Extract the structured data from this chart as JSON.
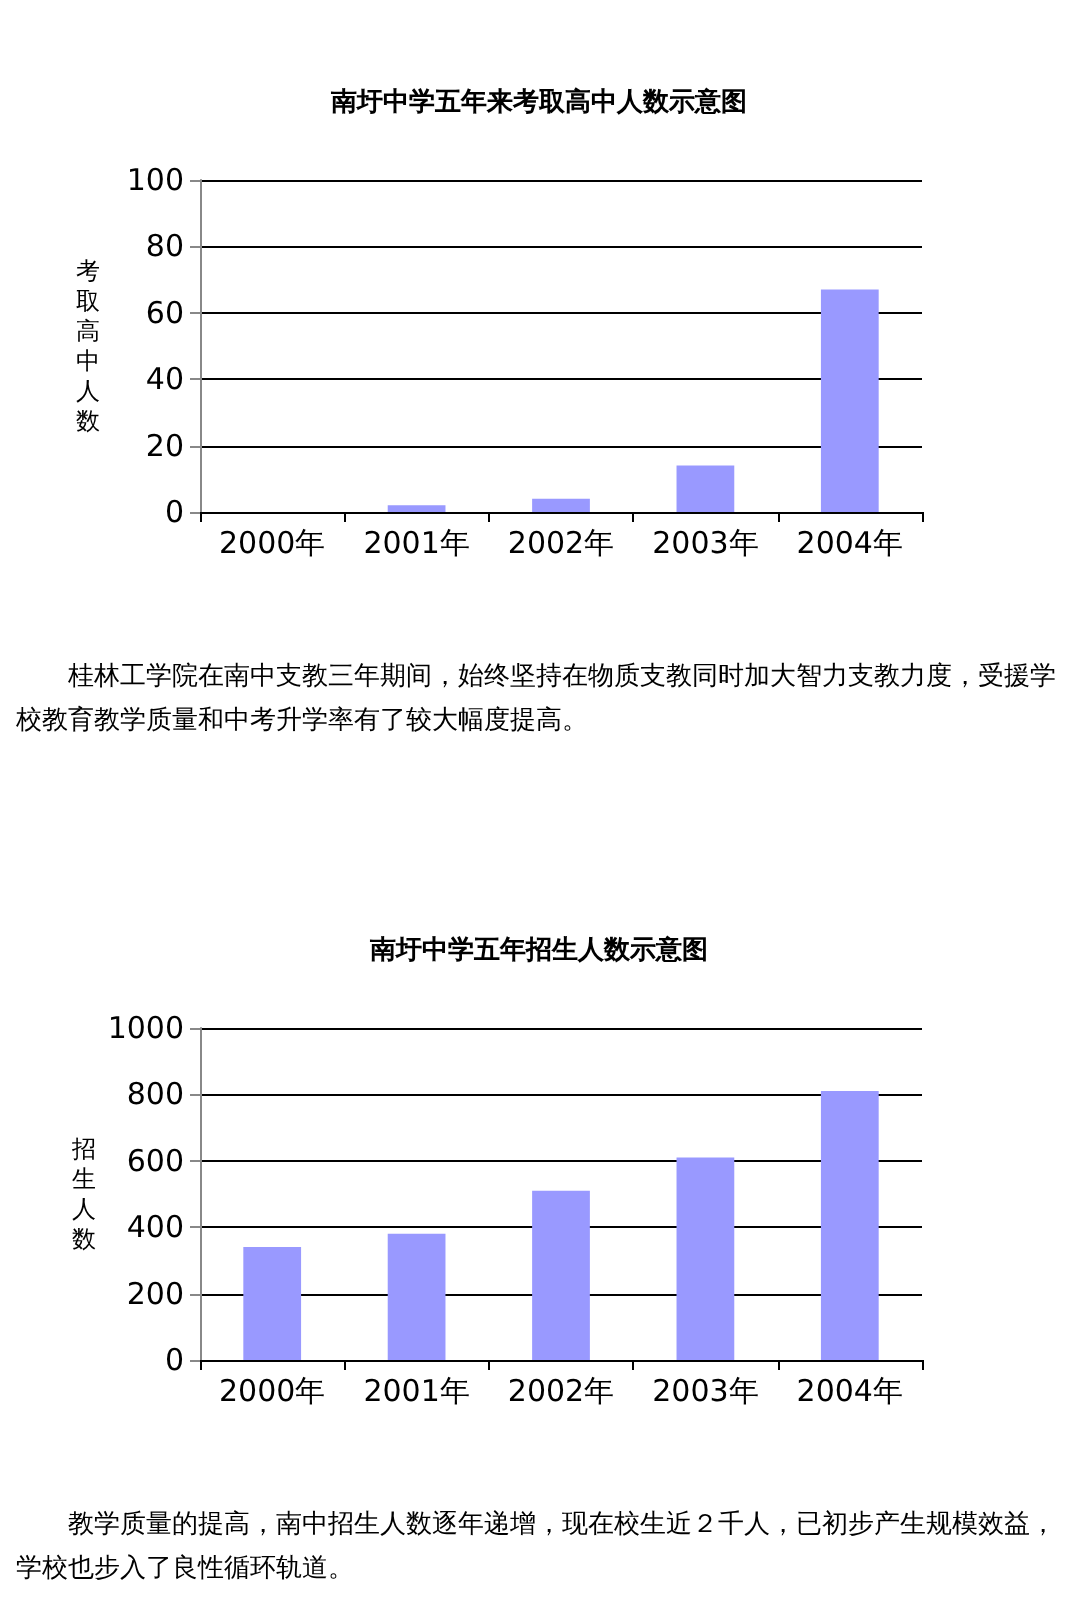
{
  "chart_data": [
    {
      "type": "bar",
      "title": "南圩中学五年来考取高中人数示意图",
      "ylabel": "考取高中人数",
      "categories": [
        "2000年",
        "2001年",
        "2002年",
        "2003年",
        "2004年"
      ],
      "series": [
        {
          "color": "#9999ff",
          "values": [
            0,
            2,
            4,
            14,
            67
          ]
        }
      ],
      "ylim": [
        0,
        100
      ],
      "yticks": [
        0,
        20,
        40,
        60,
        80,
        100
      ],
      "grid": "y",
      "annotations": [
        "桂林工学院在南中支教三年期间，始终坚持在物质支教同时加大智力支教力度，受援学校教育教学质量和中考升学率有了较大幅度提高。"
      ]
    },
    {
      "type": "bar",
      "title": "南圩中学五年招生人数示意图",
      "ylabel": "招生人数",
      "categories": [
        "2000年",
        "2001年",
        "2002年",
        "2003年",
        "2004年"
      ],
      "series": [
        {
          "color": "#9999ff",
          "values": [
            340,
            380,
            510,
            610,
            810
          ]
        }
      ],
      "ylim": [
        0,
        1000
      ],
      "yticks": [
        0,
        200,
        400,
        600,
        800,
        1000
      ],
      "grid": "y",
      "annotations": [
        "教学质量的提高，南中招生人数逐年递增，现在校生近２千人，已初步产生规模效益，学校也步入了良性循环轨道。"
      ]
    }
  ]
}
